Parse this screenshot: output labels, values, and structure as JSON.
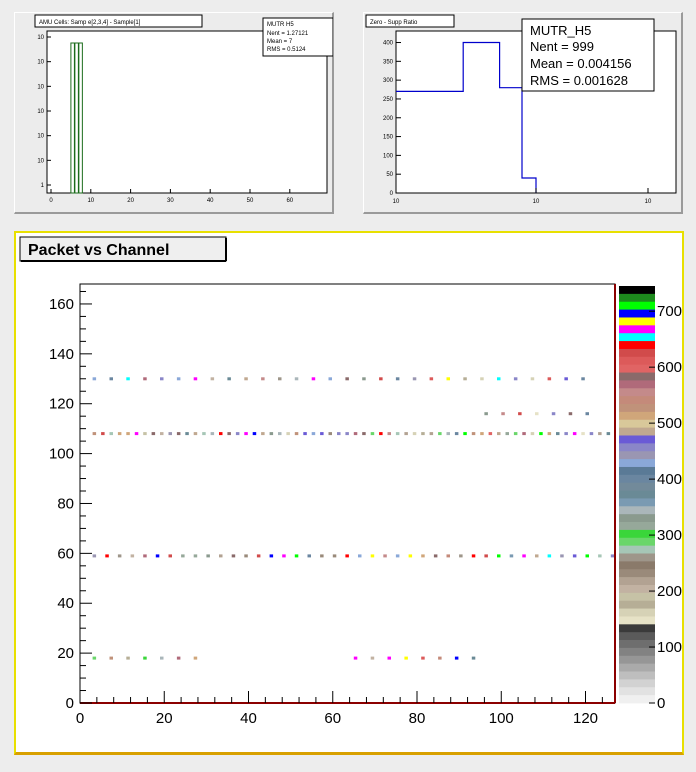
{
  "panels": {
    "amu": {
      "title": "AMU Cells: Samp e[2,3,4] - Sample[1]",
      "stats": {
        "title": "MUTR H5",
        "lines": [
          "Nent = 1.27121",
          "Mean = 7",
          "RMS = 0.5124"
        ]
      },
      "chart_data": {
        "type": "bar",
        "x_ticks": [
          "0",
          "10",
          "20",
          "30",
          "40",
          "50",
          "60"
        ],
        "y_ticks": [
          "1",
          "10",
          "10",
          "10",
          "10",
          "10",
          "10"
        ],
        "bars": [
          {
            "x": 5
          },
          {
            "x": 6
          },
          {
            "x": 7
          }
        ],
        "ylog": true
      }
    },
    "zero": {
      "title": "Zero - Supp Ratio",
      "stats": {
        "title": "MUTR_H5",
        "lines": [
          "Nent = 999",
          "Mean  = 0.004156",
          "RMS   = 0.001628"
        ]
      },
      "chart_data": {
        "type": "line",
        "x_ticks": [
          "10",
          "10",
          "10"
        ],
        "y_ticks": [
          "0",
          "50",
          "100",
          "150",
          "200",
          "250",
          "300",
          "350",
          "400"
        ],
        "ylim": [
          0,
          420
        ],
        "xlog": true,
        "steps": [
          [
            0,
            270
          ],
          [
            0.24,
            270
          ],
          [
            0.24,
            400
          ],
          [
            0.37,
            400
          ],
          [
            0.37,
            280
          ],
          [
            0.45,
            280
          ],
          [
            0.45,
            40
          ],
          [
            0.5,
            40
          ],
          [
            0.5,
            0
          ]
        ]
      }
    },
    "packet": {
      "title": "Packet vs Channel",
      "chart_data": {
        "type": "heatmap",
        "xlim": [
          0,
          127
        ],
        "ylim": [
          0,
          168
        ],
        "x_ticks": [
          0,
          20,
          40,
          60,
          80,
          100,
          120
        ],
        "y_ticks": [
          0,
          20,
          40,
          60,
          80,
          100,
          120,
          140,
          160
        ],
        "palette_ticks": [
          0,
          100,
          200,
          300,
          400,
          500,
          600,
          700
        ],
        "palette_colors": [
          "#000000",
          "#1d8a1d",
          "#00ff00",
          "#0000ff",
          "#ffff00",
          "#ff00ff",
          "#00ffff",
          "#ff0000",
          "#d14b4b",
          "#dc5a5a",
          "#e06464",
          "#8a6a6a",
          "#b06a7a",
          "#c48a8a",
          "#c48a7a",
          "#c0927a",
          "#d0a67a",
          "#d8c89a",
          "#c0a890",
          "#6a5ad6",
          "#8a86c8",
          "#9a96b2",
          "#8aa8d8",
          "#5a7a96",
          "#6a86a0",
          "#728a9a",
          "#6a8a96",
          "#7a9ab2",
          "#aab6ba",
          "#8a9a8e",
          "#96a89a",
          "#3ad63a",
          "#6ad66a",
          "#a6c6b6",
          "#9e968a",
          "#8a7a6a",
          "#9a8a7a",
          "#b2a292",
          "#c2b2a2",
          "#c6c2a6",
          "#b6ae96",
          "#d6d2b6",
          "#e6e2c6",
          "#3a3a3a",
          "#5a5a5a",
          "#6e6e6e",
          "#828282",
          "#969696",
          "#aaaaaa",
          "#bebebe",
          "#d2d2d2",
          "#e2e2e2",
          "#f0f0f0"
        ],
        "rows": [
          {
            "y": 130,
            "x_start": 3,
            "x_end": 122,
            "step": 4
          },
          {
            "y": 116,
            "x_start": 96,
            "x_end": 122,
            "step": 4
          },
          {
            "y": 108,
            "x_start": 3,
            "x_end": 126,
            "step": 2
          },
          {
            "y": 59,
            "x_start": 3,
            "x_end": 126,
            "step": 3
          },
          {
            "y": 18,
            "x_start": 3,
            "x_end": 30,
            "step": 4
          },
          {
            "y": 18,
            "x_start": 65,
            "x_end": 94,
            "step": 4
          }
        ]
      }
    }
  }
}
